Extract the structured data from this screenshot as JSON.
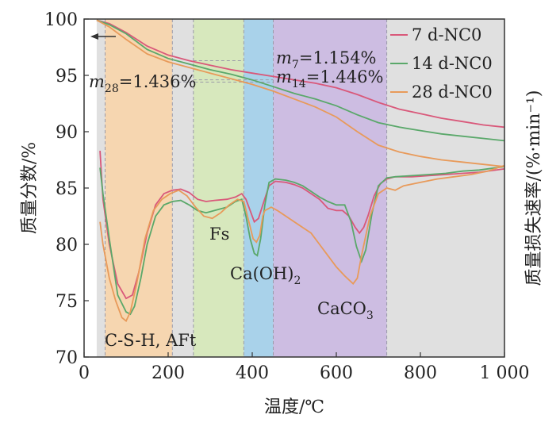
{
  "chart_data": {
    "type": "line",
    "xlabel": "温度/℃",
    "ylabel_left": "质量分数/%",
    "ylabel_right": "质量损失速率/(%·min⁻¹)",
    "xlim": [
      0,
      1000
    ],
    "ylim": [
      70,
      100
    ],
    "xticks": [
      0,
      200,
      400,
      600,
      800,
      1000
    ],
    "xtick_labels": [
      "0",
      "200",
      "400",
      "600",
      "800",
      "1 000"
    ],
    "yticks": [
      70,
      75,
      80,
      85,
      90,
      95,
      100
    ],
    "yticks_labels": [
      "70",
      "75",
      "80",
      "85",
      "90",
      "95",
      "100"
    ],
    "legend_placement": "top-right",
    "grid": false,
    "regions": [
      {
        "x0": 30,
        "x1": 1000,
        "color": "#e0e0e0"
      },
      {
        "x0": 50,
        "x1": 210,
        "color": "#f6d6b0"
      },
      {
        "x0": 260,
        "x1": 380,
        "color": "#d7e8bd"
      },
      {
        "x0": 380,
        "x1": 450,
        "color": "#a9d2ea"
      },
      {
        "x0": 450,
        "x1": 720,
        "color": "#cdbde2"
      }
    ],
    "series": [
      {
        "name": "7 d-NC0",
        "color": "#d9587a",
        "tg": [
          [
            30,
            99.9
          ],
          [
            60,
            99.6
          ],
          [
            100,
            98.8
          ],
          [
            150,
            97.6
          ],
          [
            200,
            96.8
          ],
          [
            250,
            96.3
          ],
          [
            300,
            95.9
          ],
          [
            350,
            95.5
          ],
          [
            400,
            95.2
          ],
          [
            450,
            94.9
          ],
          [
            500,
            94.6
          ],
          [
            550,
            94.3
          ],
          [
            600,
            93.9
          ],
          [
            650,
            93.3
          ],
          [
            700,
            92.6
          ],
          [
            750,
            92.0
          ],
          [
            800,
            91.6
          ],
          [
            850,
            91.2
          ],
          [
            900,
            90.9
          ],
          [
            950,
            90.6
          ],
          [
            1000,
            90.4
          ]
        ],
        "dtg": [
          [
            38,
            88.3
          ],
          [
            45,
            84.0
          ],
          [
            60,
            80.0
          ],
          [
            80,
            76.5
          ],
          [
            100,
            75.2
          ],
          [
            115,
            75.5
          ],
          [
            130,
            77.5
          ],
          [
            150,
            81.0
          ],
          [
            170,
            83.5
          ],
          [
            190,
            84.5
          ],
          [
            210,
            84.8
          ],
          [
            230,
            84.9
          ],
          [
            250,
            84.6
          ],
          [
            270,
            84.0
          ],
          [
            290,
            83.8
          ],
          [
            310,
            83.9
          ],
          [
            340,
            84.0
          ],
          [
            360,
            84.2
          ],
          [
            375,
            84.5
          ],
          [
            385,
            84.0
          ],
          [
            395,
            83.0
          ],
          [
            405,
            82.0
          ],
          [
            415,
            82.3
          ],
          [
            425,
            83.5
          ],
          [
            440,
            85.2
          ],
          [
            455,
            85.6
          ],
          [
            480,
            85.5
          ],
          [
            500,
            85.3
          ],
          [
            520,
            85.0
          ],
          [
            540,
            84.5
          ],
          [
            560,
            84.0
          ],
          [
            580,
            83.2
          ],
          [
            600,
            83.0
          ],
          [
            615,
            83.0
          ],
          [
            630,
            82.5
          ],
          [
            645,
            81.5
          ],
          [
            655,
            81.0
          ],
          [
            665,
            81.5
          ],
          [
            675,
            82.5
          ],
          [
            690,
            84.3
          ],
          [
            705,
            85.4
          ],
          [
            720,
            85.8
          ],
          [
            740,
            86.0
          ],
          [
            780,
            86.0
          ],
          [
            820,
            86.1
          ],
          [
            860,
            86.2
          ],
          [
            900,
            86.3
          ],
          [
            940,
            86.4
          ],
          [
            1000,
            86.7
          ]
        ]
      },
      {
        "name": "14 d-NC0",
        "color": "#5aa86a",
        "tg": [
          [
            30,
            99.9
          ],
          [
            60,
            99.5
          ],
          [
            100,
            98.7
          ],
          [
            150,
            97.3
          ],
          [
            200,
            96.5
          ],
          [
            250,
            96.0
          ],
          [
            300,
            95.5
          ],
          [
            350,
            95.1
          ],
          [
            400,
            94.6
          ],
          [
            450,
            94.0
          ],
          [
            500,
            93.4
          ],
          [
            550,
            92.9
          ],
          [
            600,
            92.3
          ],
          [
            650,
            91.5
          ],
          [
            700,
            90.8
          ],
          [
            750,
            90.4
          ],
          [
            800,
            90.1
          ],
          [
            850,
            89.8
          ],
          [
            900,
            89.6
          ],
          [
            950,
            89.4
          ],
          [
            1000,
            89.2
          ]
        ],
        "dtg": [
          [
            38,
            86.8
          ],
          [
            45,
            84.5
          ],
          [
            60,
            80.5
          ],
          [
            80,
            75.5
          ],
          [
            100,
            74.0
          ],
          [
            110,
            73.8
          ],
          [
            120,
            74.5
          ],
          [
            135,
            77.0
          ],
          [
            150,
            80.0
          ],
          [
            170,
            82.5
          ],
          [
            190,
            83.5
          ],
          [
            210,
            83.8
          ],
          [
            230,
            83.9
          ],
          [
            250,
            83.5
          ],
          [
            270,
            83.0
          ],
          [
            290,
            82.8
          ],
          [
            310,
            83.0
          ],
          [
            340,
            83.3
          ],
          [
            360,
            83.8
          ],
          [
            375,
            84.0
          ],
          [
            385,
            82.5
          ],
          [
            395,
            80.5
          ],
          [
            405,
            79.2
          ],
          [
            412,
            79.0
          ],
          [
            420,
            80.5
          ],
          [
            430,
            83.5
          ],
          [
            440,
            85.5
          ],
          [
            455,
            85.8
          ],
          [
            480,
            85.7
          ],
          [
            500,
            85.5
          ],
          [
            520,
            85.2
          ],
          [
            540,
            84.7
          ],
          [
            560,
            84.2
          ],
          [
            580,
            83.8
          ],
          [
            600,
            83.5
          ],
          [
            620,
            83.5
          ],
          [
            635,
            82.0
          ],
          [
            648,
            79.8
          ],
          [
            660,
            78.5
          ],
          [
            670,
            79.5
          ],
          [
            685,
            82.8
          ],
          [
            700,
            85.2
          ],
          [
            720,
            85.9
          ],
          [
            740,
            86.0
          ],
          [
            780,
            86.1
          ],
          [
            820,
            86.2
          ],
          [
            860,
            86.3
          ],
          [
            900,
            86.5
          ],
          [
            940,
            86.6
          ],
          [
            1000,
            86.9
          ]
        ]
      },
      {
        "name": "28 d-NC0",
        "color": "#e89a5a",
        "tg": [
          [
            30,
            99.9
          ],
          [
            60,
            99.3
          ],
          [
            100,
            98.2
          ],
          [
            150,
            96.9
          ],
          [
            200,
            96.2
          ],
          [
            250,
            95.7
          ],
          [
            300,
            95.2
          ],
          [
            350,
            94.7
          ],
          [
            400,
            94.2
          ],
          [
            450,
            93.6
          ],
          [
            500,
            92.9
          ],
          [
            550,
            92.2
          ],
          [
            600,
            91.3
          ],
          [
            650,
            90.0
          ],
          [
            700,
            88.8
          ],
          [
            750,
            88.2
          ],
          [
            800,
            87.8
          ],
          [
            850,
            87.5
          ],
          [
            900,
            87.3
          ],
          [
            950,
            87.1
          ],
          [
            1000,
            86.9
          ]
        ],
        "dtg": [
          [
            38,
            82.0
          ],
          [
            45,
            80.0
          ],
          [
            60,
            77.0
          ],
          [
            75,
            75.0
          ],
          [
            90,
            73.5
          ],
          [
            100,
            73.2
          ],
          [
            110,
            74.0
          ],
          [
            125,
            76.5
          ],
          [
            145,
            80.5
          ],
          [
            165,
            83.0
          ],
          [
            185,
            84.0
          ],
          [
            205,
            84.5
          ],
          [
            225,
            84.8
          ],
          [
            245,
            84.3
          ],
          [
            265,
            83.3
          ],
          [
            285,
            82.5
          ],
          [
            305,
            82.3
          ],
          [
            325,
            82.8
          ],
          [
            345,
            83.5
          ],
          [
            365,
            84.0
          ],
          [
            380,
            83.8
          ],
          [
            392,
            82.0
          ],
          [
            402,
            80.5
          ],
          [
            410,
            80.2
          ],
          [
            418,
            80.8
          ],
          [
            425,
            82.5
          ],
          [
            430,
            83.0
          ],
          [
            445,
            83.3
          ],
          [
            460,
            83.0
          ],
          [
            480,
            82.5
          ],
          [
            500,
            82.0
          ],
          [
            520,
            81.5
          ],
          [
            540,
            81.0
          ],
          [
            560,
            80.0
          ],
          [
            580,
            79.0
          ],
          [
            600,
            78.0
          ],
          [
            620,
            77.2
          ],
          [
            640,
            76.5
          ],
          [
            650,
            77.0
          ],
          [
            660,
            79.0
          ],
          [
            680,
            82.5
          ],
          [
            700,
            84.5
          ],
          [
            720,
            85.0
          ],
          [
            740,
            84.8
          ],
          [
            760,
            85.2
          ],
          [
            800,
            85.5
          ],
          [
            840,
            85.8
          ],
          [
            880,
            86.0
          ],
          [
            920,
            86.2
          ],
          [
            960,
            86.5
          ],
          [
            1000,
            87.0
          ]
        ]
      }
    ],
    "annotations": {
      "m7": {
        "label": "m",
        "sub": "7",
        "value": "=1.154%"
      },
      "m14": {
        "label": "m",
        "sub": "14",
        "value": "=1.446%"
      },
      "m28": {
        "label": "m",
        "sub": "28",
        "value": "=1.436%"
      },
      "region_csh": "C-S-H, AFt",
      "region_fs": "Fs",
      "region_caoh2_a": "Ca(OH)",
      "region_caoh2_sub": "2",
      "region_caco3_a": "CaCO",
      "region_caco3_sub": "3"
    }
  }
}
